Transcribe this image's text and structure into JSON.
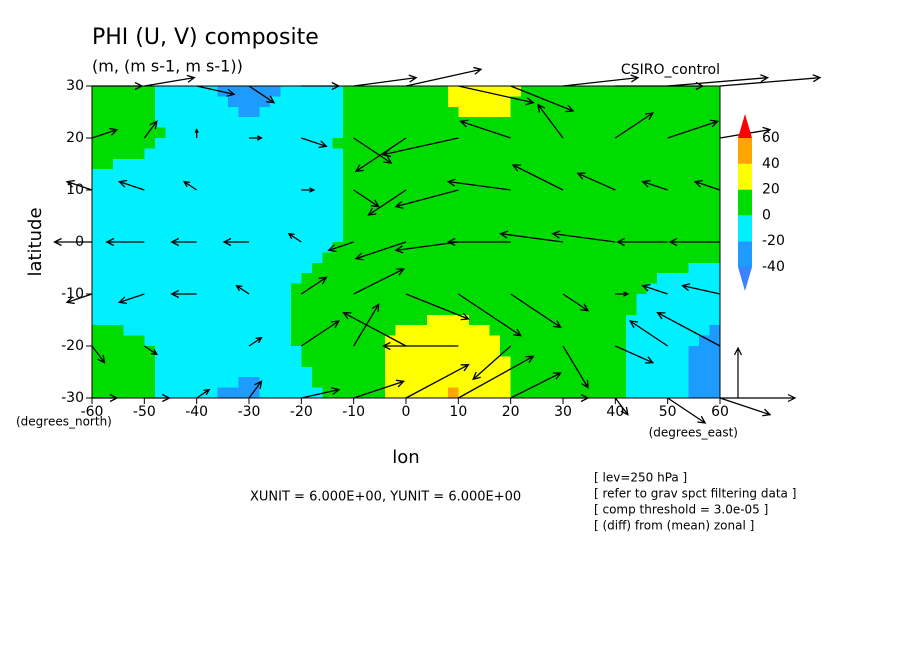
{
  "chart_data": {
    "type": "contour_vector",
    "title": "PHI (U, V) composite",
    "subtitle": "(m, (m s-1, m s-1))",
    "dataset": "CSIRO_control",
    "xlabel": "lon",
    "ylabel": "latitude",
    "x_units": "(degrees_east)",
    "y_units": "(degrees_north)",
    "x": [
      -60,
      -50,
      -40,
      -30,
      -20,
      -10,
      0,
      10,
      20,
      30,
      40,
      50,
      60
    ],
    "y": [
      30,
      20,
      10,
      0,
      -10,
      -20,
      -30
    ],
    "z": [
      [
        5,
        2,
        -12,
        -35,
        -15,
        2,
        8,
        25,
        22,
        10,
        8,
        6,
        5
      ],
      [
        8,
        4,
        -8,
        -10,
        -6,
        3,
        8,
        15,
        18,
        12,
        8,
        6,
        5
      ],
      [
        -5,
        -8,
        -10,
        -10,
        -8,
        2,
        6,
        8,
        10,
        10,
        8,
        6,
        5
      ],
      [
        -6,
        -10,
        -12,
        -10,
        -5,
        2,
        4,
        5,
        5,
        5,
        5,
        5,
        4
      ],
      [
        -8,
        -10,
        -10,
        -8,
        3,
        6,
        8,
        10,
        8,
        6,
        4,
        -3,
        -8
      ],
      [
        8,
        2,
        -8,
        -10,
        2,
        10,
        28,
        35,
        18,
        6,
        2,
        -12,
        -30
      ],
      [
        10,
        5,
        -15,
        -28,
        -5,
        8,
        30,
        42,
        20,
        8,
        2,
        -15,
        -30
      ]
    ],
    "u": [
      [
        4,
        4,
        3,
        2,
        3,
        5,
        6,
        6,
        5,
        6,
        7,
        8,
        8
      ],
      [
        2,
        1,
        0,
        1,
        2,
        3,
        -4,
        -6,
        -4,
        -2,
        3,
        4,
        4
      ],
      [
        -2,
        -2,
        -1,
        0,
        1,
        2,
        -3,
        -5,
        -5,
        -4,
        -3,
        -2,
        -2
      ],
      [
        -3,
        -3,
        -2,
        -2,
        -1,
        -2,
        -4,
        -5,
        -5,
        -5,
        -5,
        -4,
        -4
      ],
      [
        -2,
        -2,
        -2,
        -1,
        2,
        4,
        5,
        5,
        4,
        2,
        1,
        -2,
        -3
      ],
      [
        1,
        1,
        0,
        1,
        3,
        2,
        -5,
        -6,
        -3,
        2,
        3,
        -3,
        -5
      ],
      [
        2,
        2,
        1,
        1,
        3,
        4,
        5,
        6,
        4,
        2,
        1,
        3,
        4
      ]
    ],
    "v": [
      [
        0,
        1,
        -1,
        -2,
        0,
        1,
        2,
        -2,
        -3,
        1,
        0,
        1,
        1
      ],
      [
        1,
        2,
        1,
        0,
        -1,
        -3,
        -4,
        -2,
        2,
        4,
        3,
        2,
        1
      ],
      [
        1,
        1,
        1,
        0,
        0,
        -2,
        -3,
        -2,
        1,
        3,
        2,
        1,
        1
      ],
      [
        0,
        0,
        0,
        0,
        1,
        -1,
        -2,
        -1,
        0,
        1,
        1,
        0,
        0
      ],
      [
        -1,
        -1,
        0,
        1,
        2,
        3,
        -3,
        -5,
        -4,
        -2,
        0,
        1,
        1
      ],
      [
        -2,
        -1,
        0,
        1,
        3,
        5,
        4,
        0,
        -4,
        -5,
        -2,
        3,
        4
      ],
      [
        0,
        0,
        1,
        2,
        1,
        2,
        4,
        5,
        3,
        0,
        -2,
        -3,
        -2
      ]
    ],
    "levels": [
      -40,
      -20,
      0,
      20,
      40,
      60
    ],
    "colors": [
      "#3c82ff",
      "#1e9bff",
      "#00f0ff",
      "#00dc00",
      "#ffff00",
      "#ffa500",
      "#ff0000"
    ],
    "xlim": [
      -60,
      60
    ],
    "ylim": [
      -30,
      30
    ],
    "xticks": [
      -60,
      -50,
      -40,
      -30,
      -20,
      -10,
      0,
      10,
      20,
      30,
      40,
      50,
      60
    ],
    "yticks": [
      -30,
      -20,
      -10,
      0,
      10,
      20,
      30
    ],
    "ref_vector": {
      "label": "XUNIT = 6.000E+00, YUNIT = 6.000E+00",
      "xunit": 6,
      "yunit": 6
    },
    "notes": [
      "[ lev=250 hPa ]",
      "[ refer to grav spct filtering data ]",
      "[ comp threshold = 3.0e-05 ]",
      "[ (diff) from (mean) zonal ]"
    ]
  }
}
